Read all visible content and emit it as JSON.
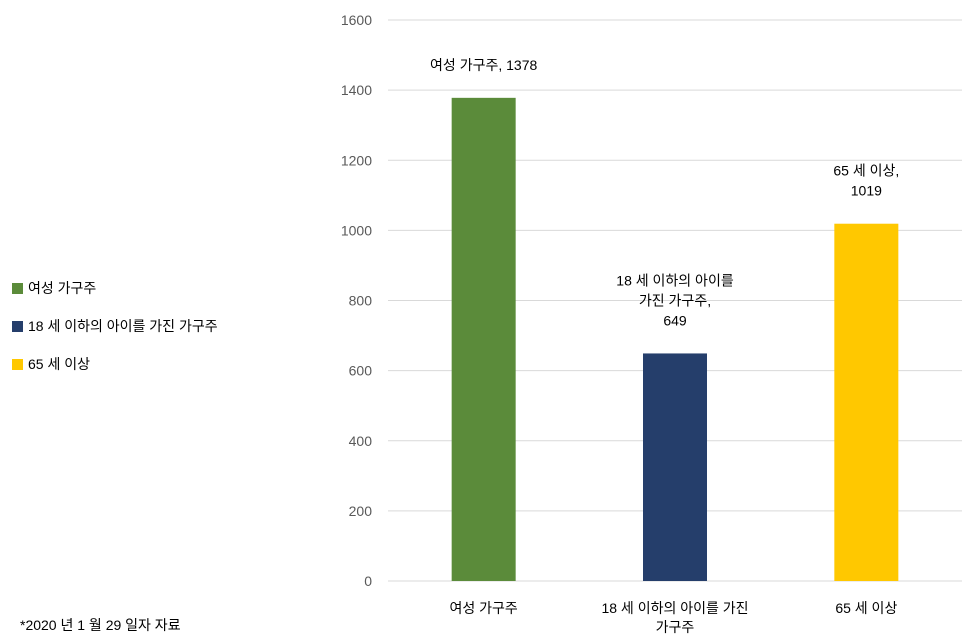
{
  "chart_data": {
    "type": "bar",
    "categories": [
      "여성 가구주",
      "18 세 이하의 아이를 가진 가구주",
      "65 세 이상"
    ],
    "category_labels_wrapped": [
      [
        "여성 가구주"
      ],
      [
        "18 세 이하의 아이를 가진",
        "가구주"
      ],
      [
        "65 세 이상"
      ]
    ],
    "values": [
      1378,
      649,
      1019
    ],
    "colors": [
      "#5b8b3a",
      "#253e6b",
      "#ffc800"
    ],
    "data_labels": [
      [
        "여성 가구주, 1378"
      ],
      [
        "18 세 이하의 아이를",
        "가진 가구주,",
        "649"
      ],
      [
        "65 세 이상,",
        "1019"
      ]
    ],
    "ylim": [
      0,
      1600
    ],
    "yticks": [
      0,
      200,
      400,
      600,
      800,
      1000,
      1200,
      1400,
      1600
    ],
    "grid": true,
    "legend_position": "left",
    "title": "",
    "xlabel": "",
    "ylabel": ""
  },
  "legend": {
    "items": [
      {
        "label": "여성 가구주",
        "color": "#5b8b3a"
      },
      {
        "label": "18 세 이하의 아이를 가진 가구주",
        "color": "#253e6b"
      },
      {
        "label": "65 세 이상",
        "color": "#ffc800"
      }
    ]
  },
  "footnote": "*2020 년 1 월 29 일자 자료",
  "colors": {
    "gridline": "#d9d9d9",
    "tick_text": "#595959"
  }
}
